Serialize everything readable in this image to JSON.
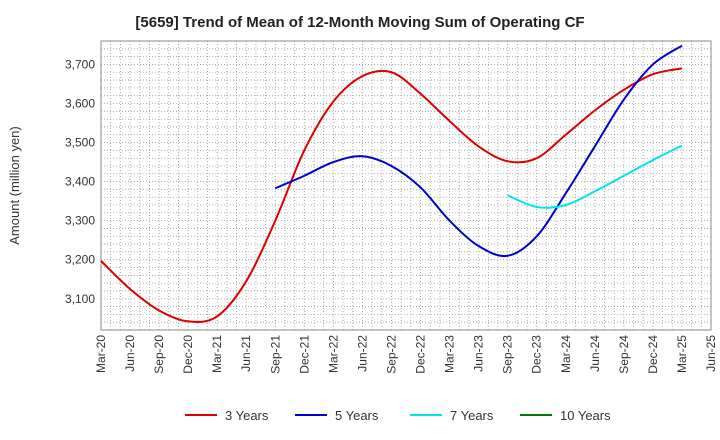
{
  "chart_data": {
    "type": "line",
    "title": "[5659]  Trend of Mean of 12-Month Moving Sum of Operating CF",
    "xlabel": "",
    "ylabel": "Amount (million yen)",
    "ylim": [
      3020,
      3760
    ],
    "yticks": [
      3100,
      3200,
      3300,
      3400,
      3500,
      3600,
      3700
    ],
    "ytick_labels": [
      "3,100",
      "3,200",
      "3,300",
      "3,400",
      "3,500",
      "3,600",
      "3,700"
    ],
    "categories": [
      "Mar-20",
      "Jun-20",
      "Sep-20",
      "Dec-20",
      "Mar-21",
      "Jun-21",
      "Sep-21",
      "Dec-21",
      "Mar-22",
      "Jun-22",
      "Sep-22",
      "Dec-22",
      "Mar-23",
      "Jun-23",
      "Sep-23",
      "Dec-23",
      "Mar-24",
      "Jun-24",
      "Sep-24",
      "Dec-24",
      "Mar-25",
      "Jun-25"
    ],
    "grid": true,
    "legend_position": "bottom",
    "series": [
      {
        "name": "3 Years",
        "color": "#dd0000",
        "values": [
          3197,
          3125,
          3070,
          3042,
          3055,
          3145,
          3300,
          3480,
          3605,
          3670,
          3680,
          3625,
          3555,
          3490,
          3452,
          3460,
          3520,
          3582,
          3635,
          3675,
          3690,
          null
        ]
      },
      {
        "name": "5 Years",
        "color": "#0000cc",
        "values": [
          null,
          null,
          null,
          null,
          null,
          null,
          3383,
          3415,
          3450,
          3465,
          3440,
          3385,
          3300,
          3235,
          3210,
          3260,
          3370,
          3490,
          3610,
          3700,
          3748,
          null
        ]
      },
      {
        "name": "7 Years",
        "color": "#00e5ee",
        "values": [
          null,
          null,
          null,
          null,
          null,
          null,
          null,
          null,
          null,
          null,
          null,
          null,
          null,
          null,
          3365,
          3335,
          3340,
          3375,
          3415,
          3455,
          3492,
          null
        ]
      },
      {
        "name": "10 Years",
        "color": "#007700",
        "values": [
          null,
          null,
          null,
          null,
          null,
          null,
          null,
          null,
          null,
          null,
          null,
          null,
          null,
          null,
          null,
          null,
          null,
          null,
          null,
          null,
          null,
          null
        ]
      }
    ]
  }
}
